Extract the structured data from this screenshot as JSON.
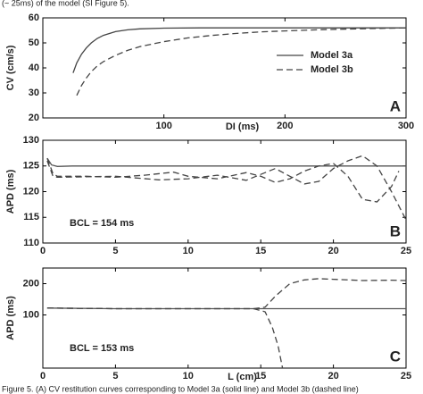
{
  "caption_top": "(~ 25ms) of the model (SI Figure 5).",
  "caption_bottom": "Figure 5. (A) CV restitution curves corresponding to Model 3a (solid line) and Model 3b (dashed line)",
  "chart_data": [
    {
      "type": "line",
      "panel": "A",
      "ylabel": "CV (cm/s)",
      "xlabel": "DI (ms)",
      "xlim": [
        0,
        300
      ],
      "xticks": [
        100,
        200,
        300
      ],
      "ylim": [
        20,
        60
      ],
      "yticks": [
        20,
        30,
        40,
        50,
        60
      ],
      "legend": "upper right",
      "series": [
        {
          "name": "Model 3a",
          "color": "#444444",
          "dashed": false,
          "x": [
            25,
            28,
            32,
            36,
            40,
            45,
            50,
            60,
            70,
            80,
            100,
            130,
            160,
            200,
            250,
            300
          ],
          "values": [
            38,
            42,
            45.5,
            48,
            50,
            51.8,
            53,
            54.5,
            55.2,
            55.6,
            55.9,
            56,
            56,
            56,
            56,
            56
          ]
        },
        {
          "name": "Model 3b",
          "color": "#444444",
          "dashed": true,
          "x": [
            28,
            32,
            36,
            40,
            45,
            50,
            60,
            70,
            80,
            100,
            120,
            140,
            160,
            180,
            200,
            230,
            260,
            300
          ],
          "values": [
            29,
            33,
            36,
            38.5,
            40.8,
            42.5,
            45,
            47,
            48.5,
            50.5,
            52,
            53,
            53.8,
            54.4,
            54.8,
            55.3,
            55.6,
            56
          ]
        }
      ]
    },
    {
      "type": "line",
      "panel": "B",
      "ylabel": "APD (ms)",
      "annotation": "BCL = 154 ms",
      "xlim": [
        0,
        25
      ],
      "xticks": [
        0,
        5,
        10,
        15,
        20,
        25
      ],
      "ylim": [
        110,
        130
      ],
      "yticks": [
        110,
        115,
        120,
        125,
        130
      ],
      "series": [
        {
          "color": "#555555",
          "dashed": false,
          "x": [
            0.3,
            0.6,
            1,
            2,
            5,
            10,
            15,
            20,
            25
          ],
          "values": [
            126.5,
            125.2,
            124.9,
            125,
            125,
            125,
            125,
            125,
            125
          ]
        },
        {
          "color": "#444444",
          "dashed": true,
          "x": [
            0.3,
            0.7,
            1,
            3,
            5,
            7,
            9,
            10,
            12,
            14,
            15,
            16,
            17,
            18,
            19,
            20,
            21,
            22,
            23,
            24,
            24.5
          ],
          "values": [
            126.5,
            123.5,
            123,
            123,
            122.8,
            123.2,
            123.8,
            123,
            122.5,
            123.7,
            123,
            121.8,
            122.5,
            124,
            125,
            125.5,
            123,
            118.5,
            118,
            121,
            124
          ]
        },
        {
          "color": "#444444",
          "dashed": true,
          "x": [
            0.3,
            0.7,
            1,
            5,
            8,
            10,
            12,
            14,
            16,
            17,
            18,
            19,
            20,
            21,
            22,
            23,
            24,
            25
          ],
          "values": [
            126,
            123,
            122.8,
            123,
            122.3,
            122.5,
            123.2,
            122.2,
            124.5,
            123,
            121.5,
            122,
            124.5,
            126,
            127,
            125,
            120,
            114.5
          ]
        }
      ]
    },
    {
      "type": "line",
      "panel": "C",
      "ylabel": "APD (ms)",
      "xlabel": "L (cm)",
      "annotation": "BCL = 153 ms",
      "xlim": [
        0,
        25
      ],
      "xticks": [
        0,
        5,
        10,
        15,
        20,
        25
      ],
      "ylim": [
        -70,
        250
      ],
      "yticks": [
        100,
        200
      ],
      "series": [
        {
          "color": "#555555",
          "dashed": false,
          "x": [
            0.3,
            5,
            10,
            15,
            20,
            25
          ],
          "values": [
            122,
            120,
            120,
            120,
            120,
            120
          ]
        },
        {
          "color": "#444444",
          "dashed": true,
          "x": [
            0.3,
            5,
            10,
            14.5,
            15.3,
            16,
            17,
            18,
            19,
            20,
            22,
            24,
            25
          ],
          "values": [
            122,
            120,
            120,
            120,
            125,
            160,
            200,
            212,
            216,
            214,
            210,
            211,
            210
          ]
        },
        {
          "color": "#444444",
          "dashed": true,
          "x": [
            0.3,
            5,
            10,
            14.5,
            15.3,
            15.8,
            16.2,
            16.5
          ],
          "values": [
            122,
            120,
            120,
            120,
            110,
            60,
            0,
            -70
          ]
        }
      ]
    }
  ]
}
